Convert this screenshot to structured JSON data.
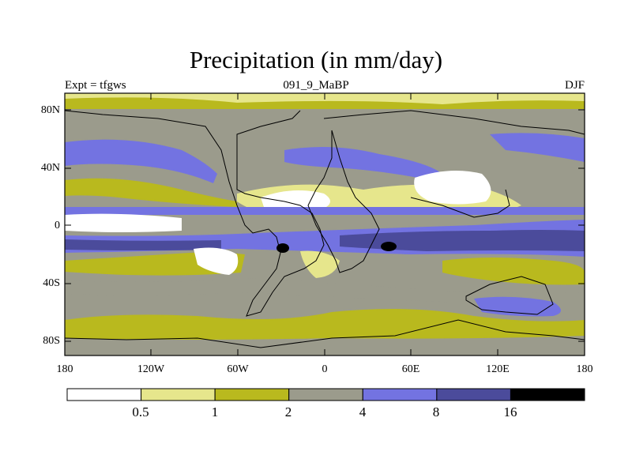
{
  "figure": {
    "title": "Precipitation (in mm/day)",
    "left_label": "Expt = tfgws",
    "center_label": "091_9_MaBP",
    "right_label": "DJF"
  },
  "map": {
    "variable": "Precipitation",
    "units": "mm/day",
    "season": "DJF",
    "lat_ticks": [
      "80N",
      "40N",
      "0",
      "40S",
      "80S"
    ],
    "lon_ticks": [
      "180",
      "120W",
      "60W",
      "0",
      "60E",
      "120E",
      "180"
    ]
  },
  "colorbar": {
    "levels": [
      "0.5",
      "1",
      "2",
      "4",
      "8",
      "16"
    ],
    "colors": [
      "#ffffff",
      "#e6e68c",
      "#b9b91e",
      "#9b9b8c",
      "#7373e1",
      "#4b4b9b",
      "#000000"
    ]
  }
}
